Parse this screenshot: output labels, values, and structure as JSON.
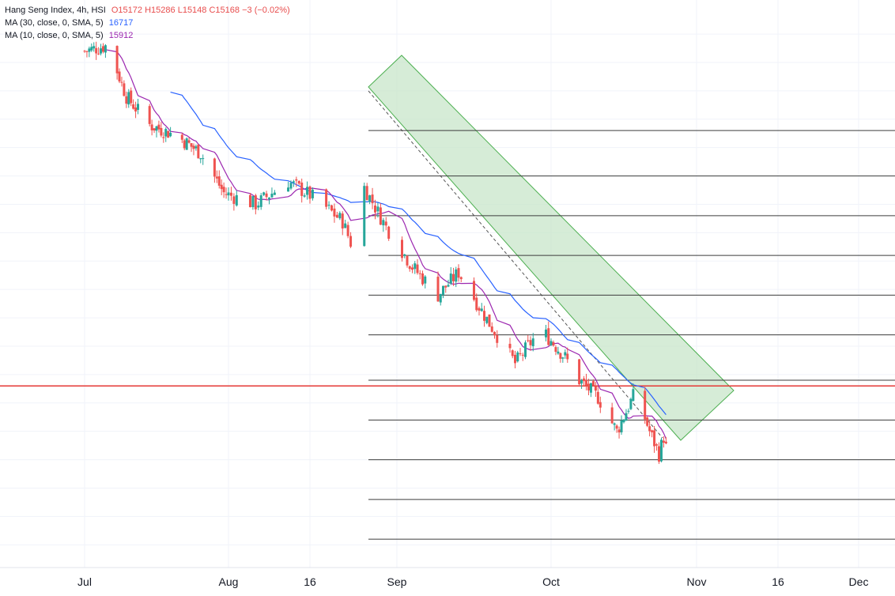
{
  "legend": {
    "symbol": "Hang Seng Index, 4h, HSI",
    "open": "O15172",
    "high": "H15286",
    "low": "L15148",
    "close": "C15168",
    "change": "−3 (−0.02%)",
    "ma30_label": "MA (30, close, 0, SMA, 5)",
    "ma30_value": "16717",
    "ma10_label": "MA (10, close, 0, SMA, 5)",
    "ma10_value": "15912"
  },
  "colors": {
    "up": "#26a69a",
    "down": "#ef5350",
    "ma30": "#2962ff",
    "ma10": "#9c27b0",
    "channel_fill": "#c8e6c9",
    "channel_stroke": "#4caf50",
    "hline": "#e53935",
    "grid": "#f0f3fa"
  },
  "chart_data": {
    "type": "candlestick",
    "title": "Hang Seng Index, 4h, HSI",
    "x_ticks": [
      "Jul",
      "Aug",
      "16",
      "Sep",
      "Oct",
      "Nov",
      "16",
      "Dec"
    ],
    "ylim": [
      14300,
      19300
    ],
    "horizontal_line": 15900,
    "level_lines": [
      18150,
      17750,
      17400,
      17050,
      16700,
      16350,
      15950,
      15600,
      15250,
      14900,
      14550
    ],
    "channel": {
      "start": "Aug 24",
      "end": "Nov 8",
      "direction": "descending"
    },
    "series": [
      {
        "name": "Hang Seng Index",
        "from": "Jul 1",
        "to": "Oct 26",
        "last_close": 15168
      },
      {
        "name": "MA (30, close, 0, SMA, 5)",
        "last": 16717
      },
      {
        "name": "MA (10, close, 0, SMA, 5)",
        "last": 15912
      }
    ]
  }
}
